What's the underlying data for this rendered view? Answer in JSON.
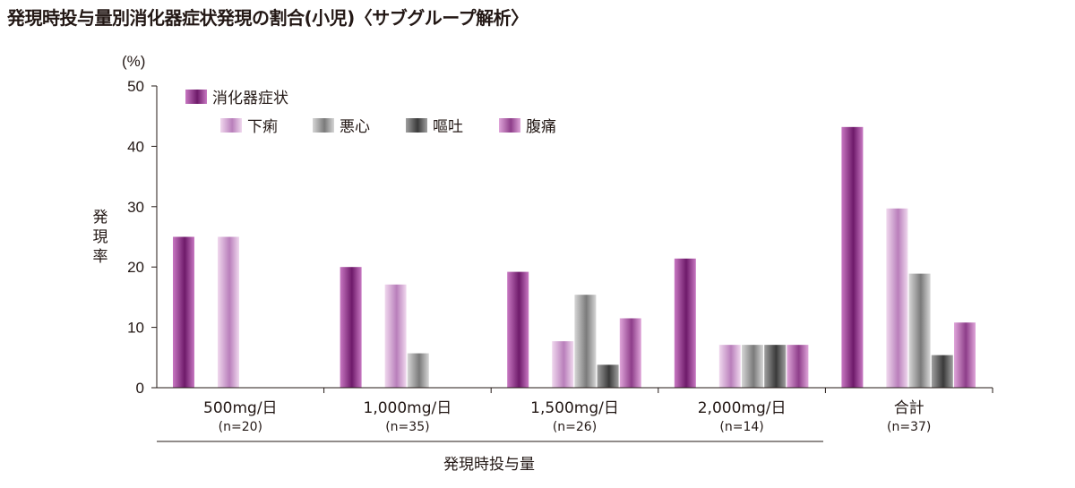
{
  "chart_data": {
    "type": "bar",
    "title": "発現時投与量別消化器症状発現の割合(小児)〈サブグループ解析〉",
    "unit_label": "(%)",
    "ylabel": [
      "発",
      "現",
      "率"
    ],
    "xlabel": "発現時投与量",
    "ylim": [
      0,
      50
    ],
    "yticks": [
      0,
      10,
      20,
      30,
      40,
      50
    ],
    "categories": [
      {
        "label": "500mg/日",
        "sub": "(n=20)"
      },
      {
        "label": "1,000mg/日",
        "sub": "(n=35)"
      },
      {
        "label": "1,500mg/日",
        "sub": "(n=26)"
      },
      {
        "label": "2,000mg/日",
        "sub": "(n=14)"
      },
      {
        "label": "合計",
        "sub": "(n=37)"
      }
    ],
    "series": [
      {
        "name": "消化器症状",
        "color_dark": "#6e1a6a",
        "color_light": "#c878c2",
        "values": [
          25.0,
          20.0,
          19.2,
          21.4,
          43.2
        ]
      },
      {
        "name": "下痢",
        "color_dark": "#b97fbb",
        "color_light": "#f0d8ee",
        "values": [
          25.0,
          17.1,
          7.7,
          7.1,
          29.7
        ]
      },
      {
        "name": "悪心",
        "color_dark": "#7a7a7a",
        "color_light": "#d6d6d6",
        "values": [
          0,
          5.7,
          15.4,
          7.1,
          18.9
        ]
      },
      {
        "name": "嘔吐",
        "color_dark": "#3a3a3a",
        "color_light": "#a0a0a0",
        "values": [
          0,
          0,
          3.8,
          7.1,
          5.4
        ]
      },
      {
        "name": "腹痛",
        "color_dark": "#8e3e8a",
        "color_light": "#e0a6da",
        "values": [
          0,
          0,
          11.5,
          7.1,
          10.8
        ]
      }
    ]
  }
}
